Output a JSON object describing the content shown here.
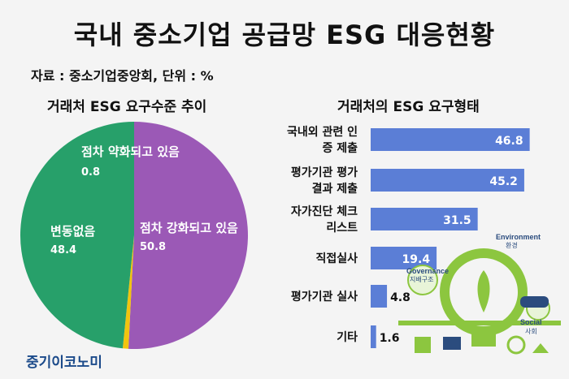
{
  "title": "국내 중소기업 공급망 ESG 대응현황",
  "source": "자료 : 중소기업중앙회, 단위 : %",
  "brand": "중기이코노미",
  "chart_data": [
    {
      "type": "pie",
      "title": "거래처 ESG 요구수준 추이",
      "labels": [
        "점차 강화되고 있음",
        "점차 약화되고 있음",
        "변동없음"
      ],
      "values": [
        50.8,
        0.8,
        48.4
      ],
      "colors": [
        "#9b59b6",
        "#f1c40f",
        "#27a06a"
      ]
    },
    {
      "type": "bar",
      "orientation": "horizontal",
      "title": "거래처의 ESG 요구형태",
      "categories": [
        [
          "국내외 관련 인",
          "증 제출"
        ],
        [
          "평가기관 평가",
          "결과 제출"
        ],
        [
          "자가진단 체크",
          "리스트"
        ],
        [
          "직접실사"
        ],
        [
          "평가기관 실사"
        ],
        [
          "기타"
        ]
      ],
      "values": [
        46.8,
        45.2,
        31.5,
        19.4,
        4.8,
        1.6
      ],
      "color": "#5b7ed6",
      "xlim": [
        0,
        50
      ]
    }
  ],
  "illustration": {
    "labels": [
      "Environment",
      "환경",
      "Governance",
      "지배구조",
      "Social",
      "사회"
    ],
    "colors": {
      "bulb": "#8cc63f",
      "dark": "#2b4c7e"
    }
  }
}
